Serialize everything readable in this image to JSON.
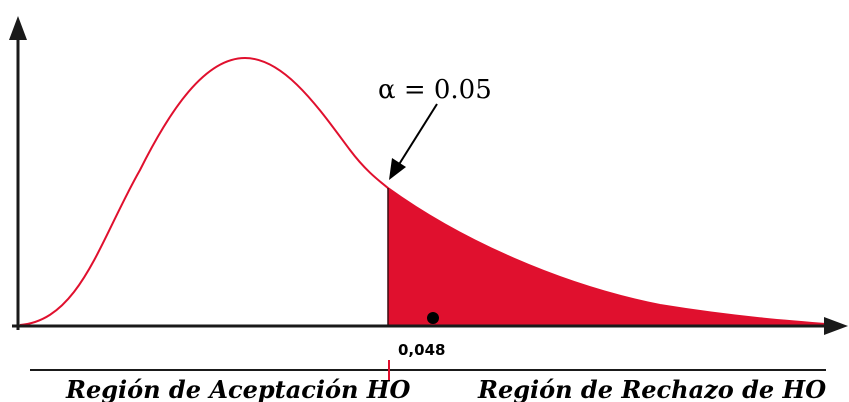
{
  "annotations": {
    "alpha_label": "α = 0.05",
    "test_value_label": "0,048"
  },
  "regions": {
    "acceptance_label": "Región de Aceptación HO",
    "rejection_label": "Región de Rechazo de HO"
  },
  "colors": {
    "curve": "#e0102e",
    "rejection_fill": "#e0102e",
    "axis": "#1a1a1a",
    "critical_tick": "#e0102e",
    "marker": "#000000"
  }
}
